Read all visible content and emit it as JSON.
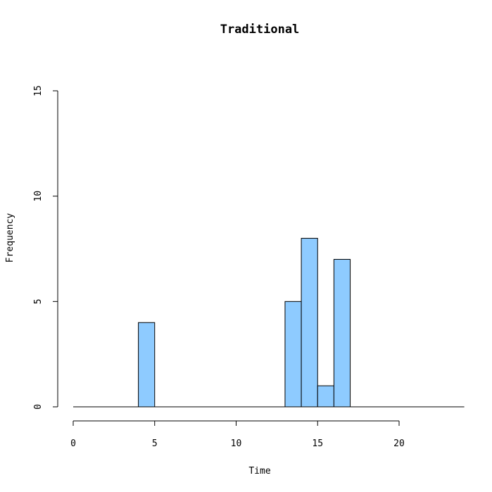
{
  "chart_data": {
    "type": "bar",
    "title": "Traditional",
    "xlabel": "Time",
    "ylabel": "Frequency",
    "bins": [
      {
        "start": 4,
        "end": 5,
        "count": 4
      },
      {
        "start": 13,
        "end": 14,
        "count": 5
      },
      {
        "start": 14,
        "end": 15,
        "count": 8
      },
      {
        "start": 15,
        "end": 16,
        "count": 1
      },
      {
        "start": 16,
        "end": 17,
        "count": 7
      }
    ],
    "baseline_range": [
      0,
      24
    ],
    "xlim": [
      0,
      24
    ],
    "ylim": [
      0,
      15
    ],
    "xticks": [
      0,
      5,
      10,
      15,
      20
    ],
    "yticks": [
      0,
      5,
      10,
      15
    ],
    "grid": false,
    "bar_color": "#8ecbff"
  }
}
